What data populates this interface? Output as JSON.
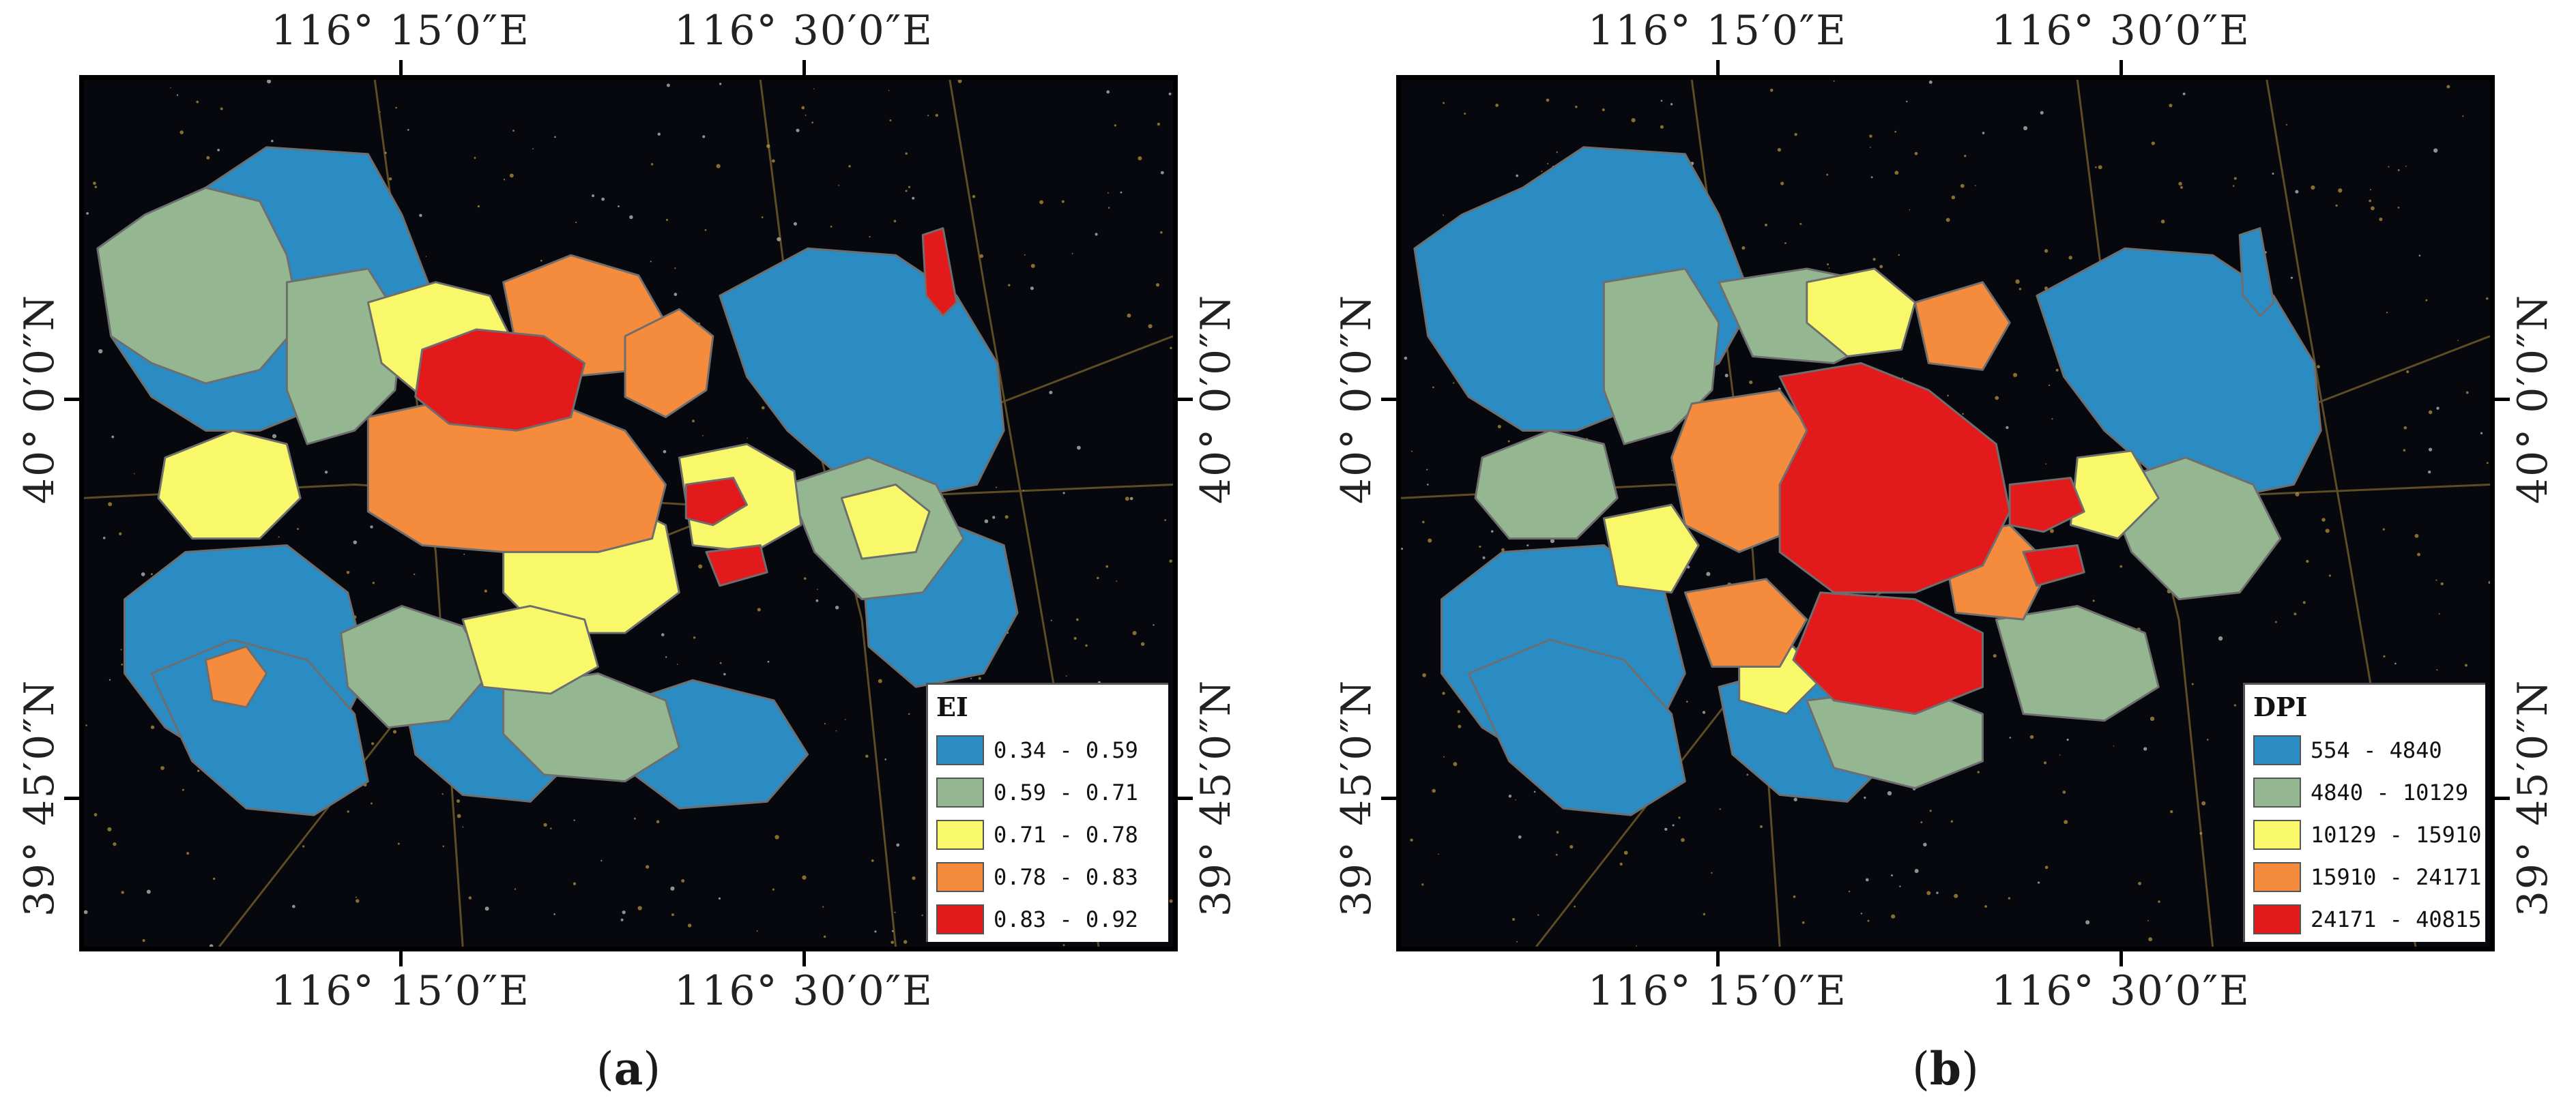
{
  "colors": {
    "blue": "#2b8cc4",
    "green": "#94b690",
    "yellow": "#f8f86a",
    "orange": "#f58b3c",
    "red": "#e31a1c",
    "night": "#06080d",
    "lights": "#f2c14e"
  },
  "coordinates": {
    "lon_1": "116° 15′0″E",
    "lon_2": "116° 30′0″E",
    "lat_1": "40° 0′0″N",
    "lat_2": "39° 45′0″N"
  },
  "panels": [
    {
      "label_open": "(",
      "label_letter": "a",
      "label_close": ")",
      "legend": {
        "title": "EI",
        "classes": [
          {
            "range": "0.34 - 0.59",
            "color": "#2b8cc4"
          },
          {
            "range": "0.59 - 0.71",
            "color": "#94b690"
          },
          {
            "range": "0.71 - 0.78",
            "color": "#f8f86a"
          },
          {
            "range": "0.78 - 0.83",
            "color": "#f58b3c"
          },
          {
            "range": "0.83 - 0.92",
            "color": "#e31a1c"
          }
        ]
      }
    },
    {
      "label_open": "(",
      "label_letter": "b",
      "label_close": ")",
      "legend": {
        "title": "DPI",
        "classes": [
          {
            "range": "554 - 4840",
            "color": "#2b8cc4"
          },
          {
            "range": "4840 - 10129",
            "color": "#94b690"
          },
          {
            "range": "10129 - 15910",
            "color": "#f8f86a"
          },
          {
            "range": "15910 - 24171",
            "color": "#f58b3c"
          },
          {
            "range": "24171 - 40815",
            "color": "#e31a1c"
          }
        ]
      }
    }
  ]
}
